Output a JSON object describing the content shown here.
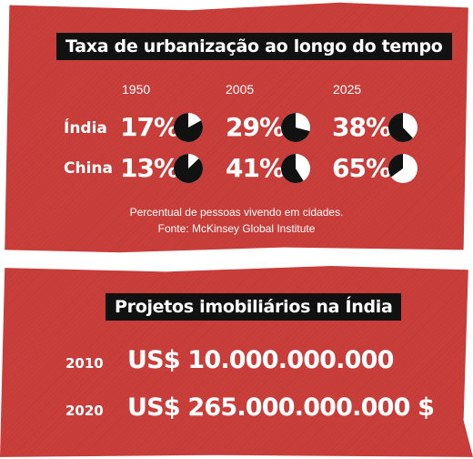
{
  "chart_data": [
    {
      "type": "pie",
      "title": "Taxa de urbanização ao longo do tempo",
      "years": [
        "1950",
        "2005",
        "2025"
      ],
      "rows": [
        {
          "label": "Índia",
          "labels": [
            "17%",
            "29%",
            "38%"
          ],
          "values": [
            17,
            29,
            38
          ]
        },
        {
          "label": "China",
          "labels": [
            "13%",
            "41%",
            "65%"
          ],
          "values": [
            13,
            41,
            65
          ]
        }
      ],
      "note": "Percentual de pessoas vivendo em cidades.",
      "source": "Fonte: McKinsey Global Institute"
    },
    {
      "type": "table",
      "title": "Projetos imobiliários na Índia",
      "rows": [
        {
          "year": "2010",
          "value": "US$ 10.000.000.000"
        },
        {
          "year": "2020",
          "value": "US$ 265.000.000.000 $"
        }
      ]
    }
  ],
  "colors": {
    "panel": "#c93e3a",
    "title_bg": "#111111",
    "pie_fill": "#111111",
    "pie_bg": "#ffffff"
  }
}
